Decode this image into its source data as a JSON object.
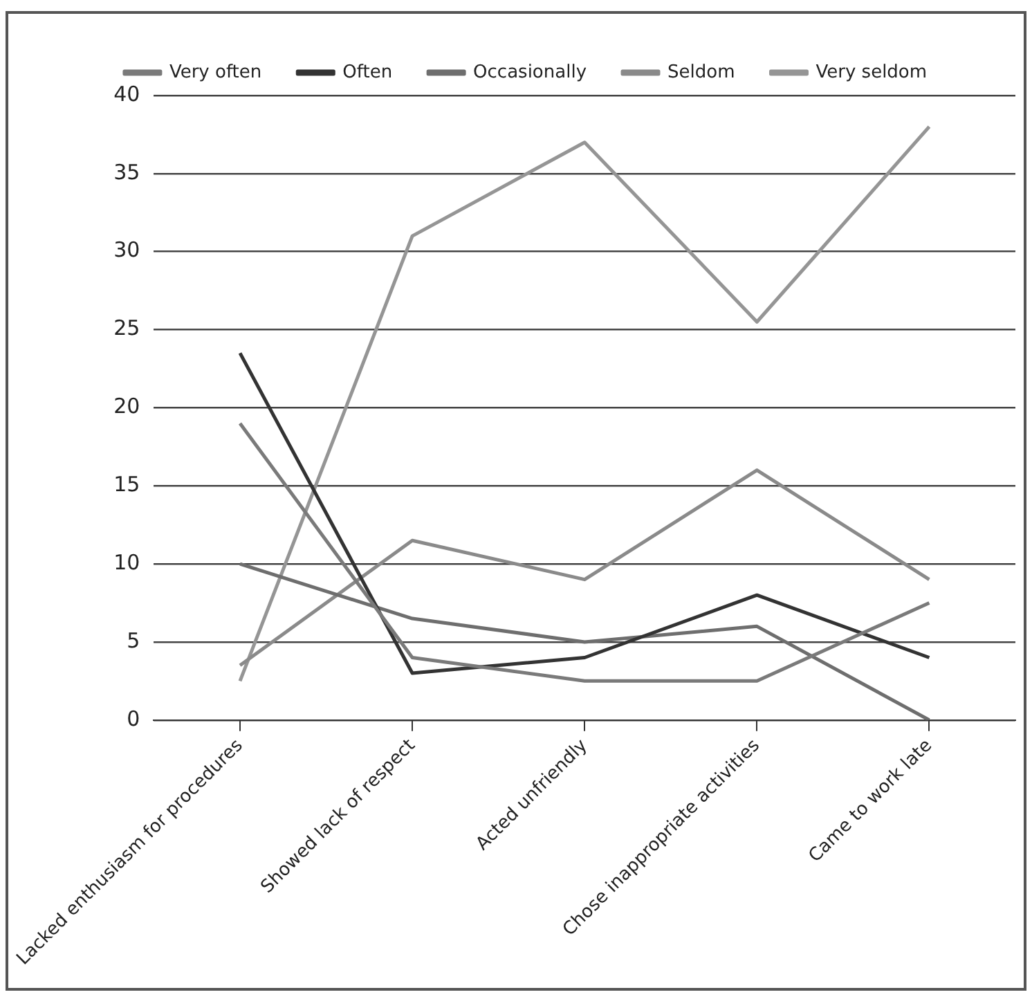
{
  "chart_data": {
    "type": "line",
    "categories": [
      "Lacked enthusiasm for procedures",
      "Showed lack of respect",
      "Acted unfriendly",
      "Chose inappropriate activities",
      "Came to work late"
    ],
    "series": [
      {
        "name": "Very often",
        "color": "#7a7a7a",
        "values": [
          19,
          4,
          2.5,
          2.5,
          7.5
        ]
      },
      {
        "name": "Often",
        "color": "#333333",
        "values": [
          23.5,
          3,
          4,
          8,
          4
        ]
      },
      {
        "name": "Occasionally",
        "color": "#6e6e6e",
        "values": [
          10,
          6.5,
          5,
          6,
          0
        ]
      },
      {
        "name": "Seldom",
        "color": "#8a8a8a",
        "values": [
          3.5,
          11.5,
          9,
          16,
          9
        ]
      },
      {
        "name": "Very seldom",
        "color": "#959595",
        "values": [
          2.5,
          31,
          37,
          25.5,
          38
        ]
      }
    ],
    "ylim": [
      0,
      40
    ],
    "yticks": [
      0,
      5,
      10,
      15,
      20,
      25,
      30,
      35,
      40
    ],
    "grid": "y",
    "legend": "top",
    "marker": "none",
    "line_style": "solid"
  }
}
